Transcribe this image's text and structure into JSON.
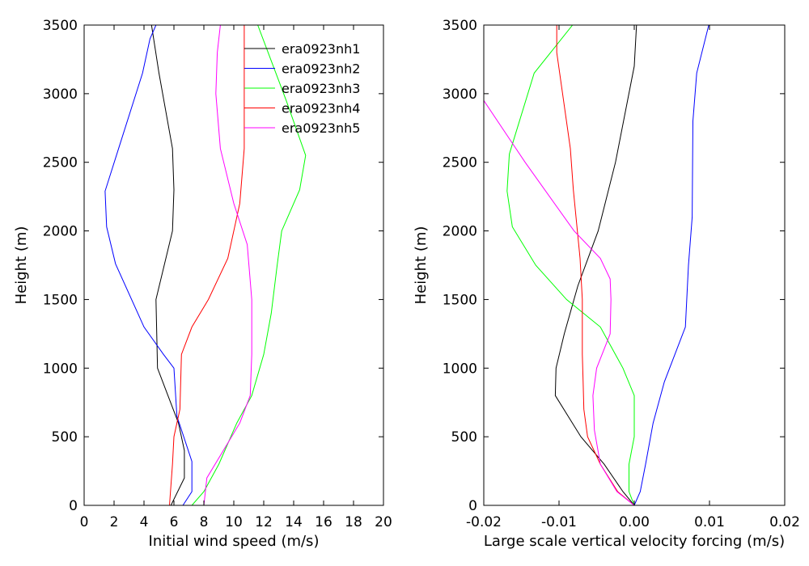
{
  "chart_data": [
    {
      "type": "line",
      "xlabel": "Initial wind speed (m/s)",
      "ylabel": "Height (m)",
      "xlim": [
        0,
        20
      ],
      "ylim": [
        0,
        3500
      ],
      "xticks": [
        "0",
        "2",
        "4",
        "6",
        "8",
        "10",
        "12",
        "14",
        "16",
        "18",
        "20"
      ],
      "yticks": [
        "0",
        "500",
        "1000",
        "1500",
        "2000",
        "2500",
        "3000",
        "3500"
      ],
      "grid": false,
      "legend": "top-right",
      "series": [
        {
          "name": "era0923nh1",
          "color": "#000000",
          "x": [
            5.8,
            6.7,
            6.7,
            6.3,
            5.6,
            4.9,
            4.8,
            5.9,
            6.0,
            5.9,
            5.0,
            4.5
          ],
          "y": [
            0,
            200,
            400,
            600,
            800,
            1000,
            1500,
            2000,
            2300,
            2600,
            3150,
            3500
          ]
        },
        {
          "name": "era0923nh2",
          "color": "#0000ff",
          "x": [
            6.6,
            7.2,
            7.2,
            6.2,
            6.0,
            5.3,
            4.0,
            2.1,
            1.5,
            1.4,
            2.3,
            3.9,
            4.4,
            4.8
          ],
          "y": [
            0,
            100,
            320,
            650,
            1000,
            1100,
            1300,
            1760,
            2030,
            2290,
            2600,
            3150,
            3400,
            3500
          ]
        },
        {
          "name": "era0923nh3",
          "color": "#00ff00",
          "x": [
            7.2,
            8.0,
            9.0,
            10.2,
            11.2,
            12.0,
            12.5,
            12.9,
            13.2,
            14.4,
            14.8,
            13.5,
            11.6
          ],
          "y": [
            0,
            100,
            300,
            600,
            800,
            1100,
            1400,
            1750,
            2000,
            2300,
            2550,
            2950,
            3500
          ]
        },
        {
          "name": "era0923nh4",
          "color": "#ff0000",
          "x": [
            5.7,
            5.9,
            6.0,
            6.4,
            6.5,
            7.2,
            8.3,
            9.6,
            10.4,
            10.7,
            10.7
          ],
          "y": [
            0,
            300,
            500,
            700,
            1100,
            1300,
            1500,
            1800,
            2200,
            2600,
            3500
          ]
        },
        {
          "name": "era0923nh5",
          "color": "#ff00ff",
          "x": [
            8.0,
            8.2,
            9.3,
            10.4,
            11.1,
            11.2,
            11.2,
            10.9,
            10.0,
            9.1,
            8.8,
            8.9,
            9.1
          ],
          "y": [
            0,
            200,
            400,
            600,
            800,
            1100,
            1500,
            1900,
            2200,
            2600,
            3000,
            3300,
            3500
          ]
        }
      ]
    },
    {
      "type": "line",
      "xlabel": "Large scale vertical velocity forcing (m/s)",
      "ylabel": "Height (m)",
      "xlim": [
        -0.02,
        0.02
      ],
      "ylim": [
        0,
        3500
      ],
      "xticks": [
        "-0.02",
        "-0.01",
        "0.00",
        "0.01",
        "0.02"
      ],
      "yticks": [
        "0",
        "500",
        "1000",
        "1500",
        "2000",
        "2500",
        "3000",
        "3500"
      ],
      "grid": false,
      "legend": "none",
      "series": [
        {
          "name": "era0923nh1",
          "color": "#000000",
          "x": [
            0.0,
            -0.0015,
            -0.004,
            -0.0071,
            -0.0105,
            -0.0104,
            -0.0093,
            -0.0075,
            -0.0048,
            -0.0025,
            0.0,
            0.0003
          ],
          "y": [
            0,
            100,
            300,
            500,
            800,
            1000,
            1250,
            1600,
            2000,
            2500,
            3200,
            3500
          ]
        },
        {
          "name": "era0923nh2",
          "color": "#0000ff",
          "x": [
            0.0,
            0.0008,
            0.0015,
            0.0025,
            0.004,
            0.0068,
            0.0072,
            0.0077,
            0.0078,
            0.0083,
            0.0099
          ],
          "y": [
            0,
            100,
            300,
            600,
            900,
            1300,
            1750,
            2100,
            2800,
            3150,
            3500
          ]
        },
        {
          "name": "era0923nh3",
          "color": "#00ff00",
          "x": [
            0.0,
            -0.0007,
            -0.0007,
            0.0,
            0.0,
            -0.0015,
            -0.0045,
            -0.009,
            -0.0131,
            -0.0162,
            -0.0169,
            -0.0166,
            -0.0133,
            -0.0082
          ],
          "y": [
            0,
            100,
            300,
            500,
            800,
            1000,
            1300,
            1500,
            1750,
            2030,
            2290,
            2560,
            3150,
            3500
          ]
        },
        {
          "name": "era0923nh4",
          "color": "#ff0000",
          "x": [
            0.0,
            -0.0022,
            -0.0045,
            -0.0062,
            -0.0067,
            -0.0068,
            -0.0069,
            -0.0069,
            -0.0072,
            -0.0081,
            -0.0085,
            -0.0103,
            -0.0103
          ],
          "y": [
            0,
            100,
            300,
            500,
            700,
            900,
            1100,
            1500,
            1800,
            2300,
            2600,
            3300,
            3500
          ]
        },
        {
          "name": "era0923nh5",
          "color": "#ff00ff",
          "x": [
            0.0,
            -0.0023,
            -0.0045,
            -0.0053,
            -0.0055,
            -0.005,
            -0.0032,
            -0.0031,
            -0.0032,
            -0.0045,
            -0.008,
            -0.0145,
            -0.02
          ],
          "y": [
            0,
            100,
            300,
            550,
            800,
            1000,
            1250,
            1500,
            1650,
            1800,
            2000,
            2500,
            2950
          ]
        }
      ]
    }
  ]
}
